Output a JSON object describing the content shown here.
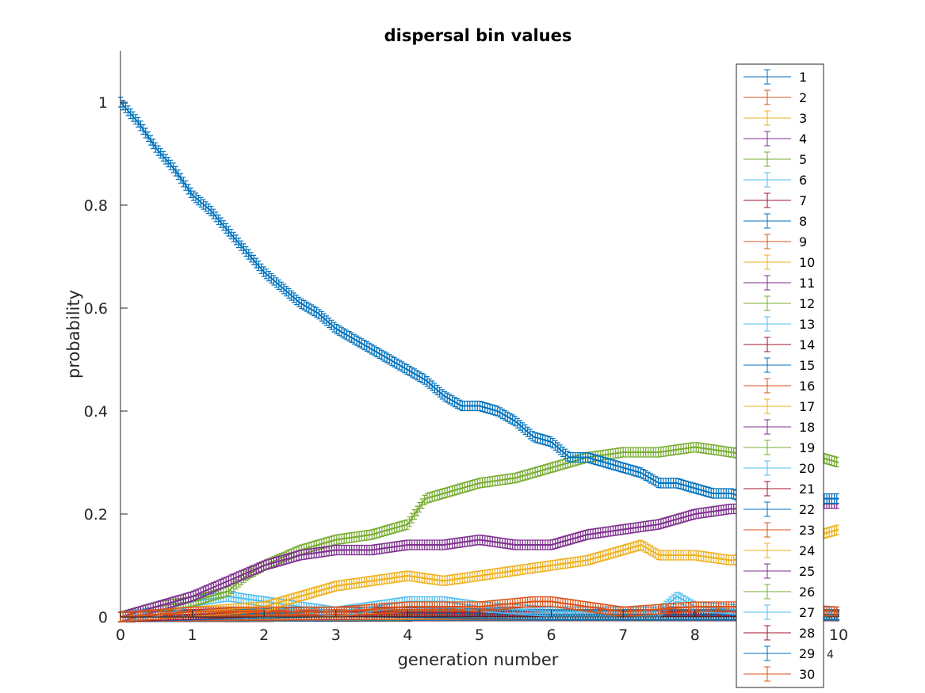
{
  "chart_data": {
    "type": "line",
    "title": "dispersal bin values",
    "xlabel": "generation number",
    "ylabel": "probability",
    "x_exponent_label": "4",
    "xlim": [
      0,
      10
    ],
    "ylim": [
      0,
      1.1
    ],
    "xticks": [
      "0",
      "1",
      "2",
      "3",
      "4",
      "5",
      "6",
      "7",
      "8",
      "9",
      "10"
    ],
    "yticks": [
      "0",
      "0.2",
      "0.4",
      "0.6",
      "0.8",
      "1"
    ],
    "legend_position": "right",
    "error_bars": true,
    "series": [
      {
        "name": "1",
        "color": "#0072BD",
        "points": [
          [
            0,
            1.0
          ],
          [
            0.25,
            0.96
          ],
          [
            0.5,
            0.91
          ],
          [
            0.75,
            0.87
          ],
          [
            1,
            0.82
          ],
          [
            1.25,
            0.79
          ],
          [
            1.5,
            0.75
          ],
          [
            1.75,
            0.71
          ],
          [
            2,
            0.67
          ],
          [
            2.25,
            0.64
          ],
          [
            2.5,
            0.61
          ],
          [
            2.75,
            0.59
          ],
          [
            3,
            0.56
          ],
          [
            3.25,
            0.54
          ],
          [
            3.5,
            0.52
          ],
          [
            3.75,
            0.5
          ],
          [
            4,
            0.48
          ],
          [
            4.25,
            0.46
          ],
          [
            4.5,
            0.43
          ],
          [
            4.75,
            0.41
          ],
          [
            5,
            0.41
          ],
          [
            5.25,
            0.4
          ],
          [
            5.5,
            0.38
          ],
          [
            5.75,
            0.35
          ],
          [
            6,
            0.34
          ],
          [
            6.25,
            0.31
          ],
          [
            6.5,
            0.31
          ],
          [
            6.75,
            0.3
          ],
          [
            7,
            0.29
          ],
          [
            7.25,
            0.28
          ],
          [
            7.5,
            0.26
          ],
          [
            7.75,
            0.26
          ],
          [
            8,
            0.25
          ],
          [
            8.25,
            0.24
          ],
          [
            8.5,
            0.24
          ],
          [
            8.75,
            0.23
          ],
          [
            9,
            0.23
          ],
          [
            9.5,
            0.23
          ],
          [
            10,
            0.23
          ]
        ]
      },
      {
        "name": "2",
        "color": "#D95319",
        "points": [
          [
            0,
            0
          ],
          [
            1,
            0.01
          ],
          [
            2,
            0.01
          ],
          [
            3,
            0.01
          ],
          [
            4,
            0.02
          ],
          [
            5,
            0.02
          ],
          [
            5.75,
            0.03
          ],
          [
            6,
            0.03
          ],
          [
            7,
            0.01
          ],
          [
            8,
            0.02
          ],
          [
            9,
            0.02
          ],
          [
            10,
            0.01
          ]
        ]
      },
      {
        "name": "3",
        "color": "#EDB120",
        "points": [
          [
            0,
            0
          ],
          [
            1,
            0.01
          ],
          [
            2,
            0.02
          ],
          [
            2.5,
            0.04
          ],
          [
            3,
            0.06
          ],
          [
            3.5,
            0.07
          ],
          [
            4,
            0.08
          ],
          [
            4.5,
            0.07
          ],
          [
            5,
            0.08
          ],
          [
            5.5,
            0.09
          ],
          [
            6,
            0.1
          ],
          [
            6.5,
            0.11
          ],
          [
            7,
            0.13
          ],
          [
            7.25,
            0.14
          ],
          [
            7.5,
            0.12
          ],
          [
            8,
            0.12
          ],
          [
            8.5,
            0.11
          ],
          [
            9,
            0.12
          ],
          [
            9.5,
            0.15
          ],
          [
            10,
            0.17
          ]
        ]
      },
      {
        "name": "4",
        "color": "#7E2F8E",
        "points": [
          [
            0,
            0
          ],
          [
            0.5,
            0.02
          ],
          [
            1,
            0.04
          ],
          [
            1.5,
            0.07
          ],
          [
            2,
            0.1
          ],
          [
            2.5,
            0.12
          ],
          [
            3,
            0.13
          ],
          [
            3.5,
            0.13
          ],
          [
            4,
            0.14
          ],
          [
            4.5,
            0.14
          ],
          [
            5,
            0.15
          ],
          [
            5.5,
            0.14
          ],
          [
            6,
            0.14
          ],
          [
            6.5,
            0.16
          ],
          [
            7,
            0.17
          ],
          [
            7.5,
            0.18
          ],
          [
            8,
            0.2
          ],
          [
            8.5,
            0.21
          ],
          [
            9,
            0.21
          ],
          [
            9.5,
            0.22
          ],
          [
            10,
            0.22
          ]
        ]
      },
      {
        "name": "5",
        "color": "#77AC30",
        "points": [
          [
            0,
            0
          ],
          [
            0.5,
            0.02
          ],
          [
            1,
            0.03
          ],
          [
            1.25,
            0.04
          ],
          [
            1.5,
            0.05
          ],
          [
            1.75,
            0.08
          ],
          [
            2,
            0.1
          ],
          [
            2.5,
            0.13
          ],
          [
            3,
            0.15
          ],
          [
            3.5,
            0.16
          ],
          [
            4,
            0.18
          ],
          [
            4.25,
            0.23
          ],
          [
            4.5,
            0.24
          ],
          [
            5,
            0.26
          ],
          [
            5.5,
            0.27
          ],
          [
            6,
            0.29
          ],
          [
            6.5,
            0.31
          ],
          [
            7,
            0.32
          ],
          [
            7.5,
            0.32
          ],
          [
            8,
            0.33
          ],
          [
            8.5,
            0.32
          ],
          [
            9,
            0.31
          ],
          [
            9.5,
            0.32
          ],
          [
            10,
            0.3
          ]
        ]
      },
      {
        "name": "6",
        "color": "#4DBEEE",
        "points": [
          [
            0,
            0
          ],
          [
            0.5,
            0.01
          ],
          [
            1,
            0.03
          ],
          [
            1.5,
            0.04
          ],
          [
            2,
            0.03
          ],
          [
            2.5,
            0.02
          ],
          [
            3,
            0.01
          ],
          [
            3.5,
            0.02
          ],
          [
            4,
            0.03
          ],
          [
            4.5,
            0.03
          ],
          [
            5,
            0.02
          ],
          [
            6,
            0.01
          ],
          [
            7,
            0.01
          ],
          [
            7.5,
            0.01
          ],
          [
            7.75,
            0.04
          ],
          [
            8,
            0.02
          ],
          [
            9,
            0.01
          ],
          [
            10,
            0.01
          ]
        ]
      },
      {
        "name": "7",
        "color": "#A2142F",
        "points": [
          [
            0,
            0
          ],
          [
            2,
            0.01
          ],
          [
            4,
            0.01
          ],
          [
            6,
            0.01
          ],
          [
            8,
            0.01
          ],
          [
            10,
            0.01
          ]
        ]
      },
      {
        "name": "8",
        "color": "#0072BD",
        "points": [
          [
            0,
            0
          ],
          [
            3,
            0.01
          ],
          [
            6,
            0.005
          ],
          [
            10,
            0.005
          ]
        ]
      },
      {
        "name": "9",
        "color": "#D95319",
        "points": [
          [
            0,
            0
          ],
          [
            3,
            0.005
          ],
          [
            6,
            0.005
          ],
          [
            10,
            0.005
          ]
        ]
      },
      {
        "name": "10",
        "color": "#EDB120",
        "points": [
          [
            0,
            0
          ],
          [
            2,
            0.005
          ],
          [
            5,
            0.005
          ],
          [
            10,
            0.005
          ]
        ]
      },
      {
        "name": "11",
        "color": "#7E2F8E",
        "points": [
          [
            0,
            0
          ],
          [
            4,
            0.005
          ],
          [
            10,
            0.005
          ]
        ]
      },
      {
        "name": "12",
        "color": "#77AC30",
        "points": [
          [
            0,
            0
          ],
          [
            5,
            0.005
          ],
          [
            10,
            0.005
          ]
        ]
      },
      {
        "name": "13",
        "color": "#4DBEEE",
        "points": [
          [
            0,
            0
          ],
          [
            5,
            0.005
          ],
          [
            10,
            0.005
          ]
        ]
      },
      {
        "name": "14",
        "color": "#A2142F",
        "points": [
          [
            0,
            0
          ],
          [
            5,
            0.005
          ],
          [
            10,
            0.005
          ]
        ]
      },
      {
        "name": "15",
        "color": "#0072BD",
        "points": [
          [
            0,
            0
          ],
          [
            5,
            0.003
          ],
          [
            10,
            0.003
          ]
        ]
      },
      {
        "name": "16",
        "color": "#D95319",
        "points": [
          [
            0,
            0
          ],
          [
            5,
            0.003
          ],
          [
            10,
            0.003
          ]
        ]
      },
      {
        "name": "17",
        "color": "#EDB120",
        "points": [
          [
            0,
            0
          ],
          [
            5,
            0.003
          ],
          [
            10,
            0.003
          ]
        ]
      },
      {
        "name": "18",
        "color": "#7E2F8E",
        "points": [
          [
            0,
            0
          ],
          [
            5,
            0.003
          ],
          [
            10,
            0.003
          ]
        ]
      },
      {
        "name": "19",
        "color": "#77AC30",
        "points": [
          [
            0,
            0
          ],
          [
            5,
            0.003
          ],
          [
            10,
            0.003
          ]
        ]
      },
      {
        "name": "20",
        "color": "#4DBEEE",
        "points": [
          [
            0,
            0
          ],
          [
            5,
            0.003
          ],
          [
            10,
            0.003
          ]
        ]
      },
      {
        "name": "21",
        "color": "#A2142F",
        "points": [
          [
            0,
            0
          ],
          [
            5,
            0.002
          ],
          [
            10,
            0.002
          ]
        ]
      },
      {
        "name": "22",
        "color": "#0072BD",
        "points": [
          [
            0,
            0
          ],
          [
            5,
            0.002
          ],
          [
            10,
            0.002
          ]
        ]
      },
      {
        "name": "23",
        "color": "#D95319",
        "points": [
          [
            0,
            0
          ],
          [
            5,
            0.002
          ],
          [
            10,
            0.002
          ]
        ]
      },
      {
        "name": "24",
        "color": "#EDB120",
        "points": [
          [
            0,
            0
          ],
          [
            5,
            0.002
          ],
          [
            10,
            0.002
          ]
        ]
      },
      {
        "name": "25",
        "color": "#7E2F8E",
        "points": [
          [
            0,
            0
          ],
          [
            5,
            0.002
          ],
          [
            10,
            0.002
          ]
        ]
      },
      {
        "name": "26",
        "color": "#77AC30",
        "points": [
          [
            0,
            0
          ],
          [
            5,
            0.002
          ],
          [
            10,
            0.002
          ]
        ]
      },
      {
        "name": "27",
        "color": "#4DBEEE",
        "points": [
          [
            0,
            0
          ],
          [
            5,
            0.002
          ],
          [
            10,
            0.002
          ]
        ]
      },
      {
        "name": "28",
        "color": "#A2142F",
        "points": [
          [
            0,
            0
          ],
          [
            5,
            0.002
          ],
          [
            10,
            0.002
          ]
        ]
      },
      {
        "name": "29",
        "color": "#0072BD",
        "points": [
          [
            0,
            0
          ],
          [
            5,
            0.002
          ],
          [
            10,
            0.002
          ]
        ]
      },
      {
        "name": "30",
        "color": "#D95319",
        "points": [
          [
            0,
            0
          ],
          [
            5,
            0.002
          ],
          [
            10,
            0.002
          ]
        ]
      }
    ]
  }
}
